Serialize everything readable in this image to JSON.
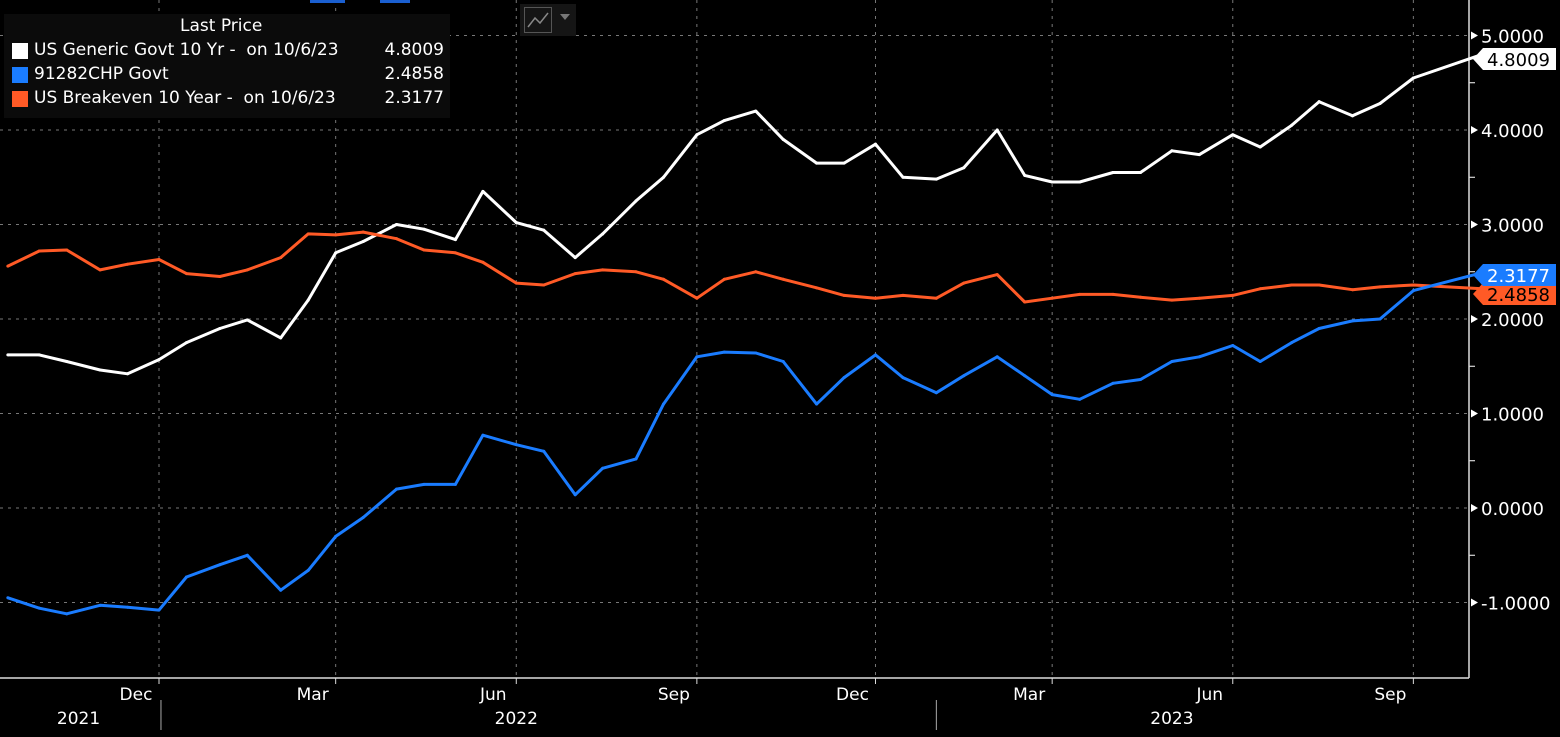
{
  "chart_data": {
    "type": "line",
    "legend": {
      "title": "Last Price",
      "placement": "top-left",
      "entries": [
        {
          "name": "US Generic Govt 10 Yr -  on 10/6/23",
          "value": "4.8009",
          "color": "#ffffff"
        },
        {
          "name": "91282CHP Govt",
          "value": "2.4858",
          "color": "#1a7cff"
        },
        {
          "name": "US Breakeven 10 Year -  on 10/6/23",
          "value": "2.3177",
          "color": "#ff5a26"
        }
      ]
    },
    "ylim": [
      -1.5,
      5.0
    ],
    "yticks": [
      "5.0000",
      "4.0000",
      "3.0000",
      "2.0000",
      "1.0000",
      "0.0000",
      "-1.0000"
    ],
    "ytick_values": [
      5,
      4,
      3,
      2,
      1,
      0,
      -1
    ],
    "xlim": [
      "2021-09-11",
      "2023-10-20"
    ],
    "xticks": [
      {
        "label": "Dec",
        "date": "2021-12-01"
      },
      {
        "label": "Mar",
        "date": "2022-03-01"
      },
      {
        "label": "Jun",
        "date": "2022-06-01"
      },
      {
        "label": "Sep",
        "date": "2022-09-01"
      },
      {
        "label": "Dec",
        "date": "2022-12-01"
      },
      {
        "label": "Mar",
        "date": "2023-03-01"
      },
      {
        "label": "Jun",
        "date": "2023-06-01"
      },
      {
        "label": "Sep",
        "date": "2023-09-01"
      }
    ],
    "years": [
      {
        "label": "2021",
        "date": "2021-10-21"
      },
      {
        "label": "2022",
        "date": "2022-06-01"
      },
      {
        "label": "2023",
        "date": "2023-05-01"
      }
    ],
    "year_separators": [
      "2021-12-02",
      "2023-01-01"
    ],
    "grid": true,
    "x": [
      "2021-09-15",
      "2021-10-01",
      "2021-10-15",
      "2021-11-01",
      "2021-11-15",
      "2021-12-01",
      "2021-12-15",
      "2022-01-01",
      "2022-01-15",
      "2022-02-01",
      "2022-02-15",
      "2022-03-01",
      "2022-03-15",
      "2022-04-01",
      "2022-04-15",
      "2022-05-01",
      "2022-05-15",
      "2022-06-01",
      "2022-06-15",
      "2022-07-01",
      "2022-07-15",
      "2022-08-01",
      "2022-08-15",
      "2022-09-01",
      "2022-09-15",
      "2022-10-01",
      "2022-10-15",
      "2022-11-01",
      "2022-11-15",
      "2022-12-01",
      "2022-12-15",
      "2023-01-01",
      "2023-01-15",
      "2023-02-01",
      "2023-02-15",
      "2023-03-01",
      "2023-03-15",
      "2023-04-01",
      "2023-04-15",
      "2023-05-01",
      "2023-05-15",
      "2023-06-01",
      "2023-06-15",
      "2023-07-01",
      "2023-07-15",
      "2023-08-01",
      "2023-08-15",
      "2023-09-01",
      "2023-10-06"
    ],
    "series": [
      {
        "name": "US Generic Govt 10 Yr",
        "color": "#ffffff",
        "last_label": "4.8009",
        "values": [
          1.62,
          1.62,
          1.55,
          1.46,
          1.42,
          1.57,
          1.75,
          1.9,
          1.99,
          1.8,
          2.2,
          2.7,
          2.82,
          3.0,
          2.95,
          2.84,
          3.35,
          3.02,
          2.94,
          2.65,
          2.9,
          3.25,
          3.5,
          3.95,
          4.1,
          4.2,
          3.9,
          3.65,
          3.65,
          3.85,
          3.5,
          3.48,
          3.6,
          4.0,
          3.52,
          3.45,
          3.45,
          3.55,
          3.55,
          3.78,
          3.74,
          3.95,
          3.82,
          4.05,
          4.3,
          4.15,
          4.28,
          4.55,
          4.8
        ]
      },
      {
        "name": "US Breakeven 10 Year",
        "color": "#ff5a26",
        "last_label": "2.3177",
        "values": [
          2.56,
          2.72,
          2.73,
          2.52,
          2.58,
          2.63,
          2.48,
          2.45,
          2.52,
          2.65,
          2.9,
          2.89,
          2.92,
          2.85,
          2.73,
          2.7,
          2.6,
          2.38,
          2.36,
          2.48,
          2.52,
          2.5,
          2.42,
          2.22,
          2.42,
          2.5,
          2.42,
          2.33,
          2.25,
          2.22,
          2.25,
          2.22,
          2.38,
          2.47,
          2.18,
          2.22,
          2.26,
          2.26,
          2.23,
          2.2,
          2.22,
          2.25,
          2.32,
          2.36,
          2.36,
          2.31,
          2.34,
          2.36,
          2.32
        ]
      },
      {
        "name": "91282CHP Govt",
        "color": "#1a7cff",
        "last_label": "2.4858",
        "values": [
          -0.95,
          -1.06,
          -1.12,
          -1.03,
          -1.05,
          -1.08,
          -0.73,
          -0.6,
          -0.5,
          -0.87,
          -0.66,
          -0.3,
          -0.1,
          0.2,
          0.25,
          0.25,
          0.77,
          0.67,
          0.6,
          0.14,
          0.42,
          0.52,
          1.1,
          1.6,
          1.65,
          1.64,
          1.55,
          1.1,
          1.38,
          1.62,
          1.38,
          1.22,
          1.4,
          1.6,
          1.4,
          1.2,
          1.15,
          1.32,
          1.36,
          1.55,
          1.6,
          1.72,
          1.55,
          1.75,
          1.9,
          1.98,
          2.0,
          2.3,
          2.49
        ]
      }
    ]
  },
  "toolbar": {
    "chart_type_icon": "line-chart-icon",
    "dropdown_icon": "caret-down-icon"
  }
}
